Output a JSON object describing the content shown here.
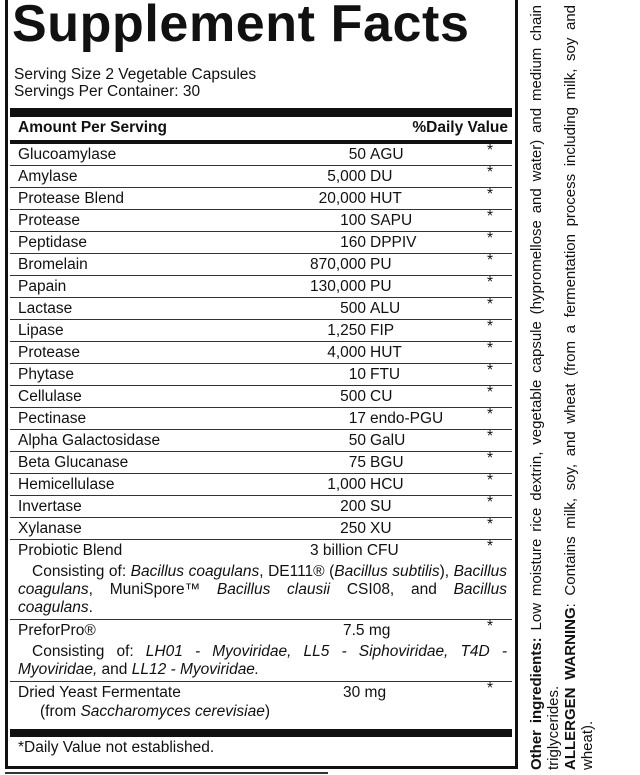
{
  "title": "Supplement Facts",
  "serving_size": "Serving Size 2 Vegetable Capsules",
  "servings_per_container": "Servings Per Container: 30",
  "header": {
    "amount": "Amount Per Serving",
    "dv": "%Daily Value"
  },
  "rows": [
    {
      "name": "Glucoamylase",
      "num": "50",
      "unit": "AGU",
      "dv": "*"
    },
    {
      "name": "Amylase",
      "num": "5,000",
      "unit": "DU",
      "dv": "*"
    },
    {
      "name": "Protease Blend",
      "num": "20,000",
      "unit": "HUT",
      "dv": "*"
    },
    {
      "name": "Protease",
      "num": "100",
      "unit": "SAPU",
      "dv": "*"
    },
    {
      "name": "Peptidase",
      "num": "160",
      "unit": "DPPIV",
      "dv": "*"
    },
    {
      "name": "Bromelain",
      "num": "870,000",
      "unit": "PU",
      "dv": "*"
    },
    {
      "name": "Papain",
      "num": "130,000",
      "unit": "PU",
      "dv": "*"
    },
    {
      "name": "Lactase",
      "num": "500",
      "unit": "ALU",
      "dv": "*"
    },
    {
      "name": "Lipase",
      "num": "1,250",
      "unit": "FIP",
      "dv": "*"
    },
    {
      "name": "Protease",
      "num": "4,000",
      "unit": "HUT",
      "dv": "*"
    },
    {
      "name": "Phytase",
      "num": "10",
      "unit": "FTU",
      "dv": "*"
    },
    {
      "name": "Cellulase",
      "num": "500",
      "unit": "CU",
      "dv": "*"
    },
    {
      "name": "Pectinase",
      "num": "17",
      "unit": "endo-PGU",
      "dv": "*"
    },
    {
      "name": "Alpha Galactosidase",
      "num": "50",
      "unit": "GalU",
      "dv": "*"
    },
    {
      "name": "Beta Glucanase",
      "num": "75",
      "unit": "BGU",
      "dv": "*"
    },
    {
      "name": "Hemicellulase",
      "num": "1,000",
      "unit": "HCU",
      "dv": "*"
    },
    {
      "name": "Invertase",
      "num": "200",
      "unit": "SU",
      "dv": "*"
    },
    {
      "name": "Xylanase",
      "num": "250",
      "unit": "XU",
      "dv": "*"
    }
  ],
  "blends": [
    {
      "name": "Probiotic Blend",
      "amount": "3 billion CFU",
      "dv": "*",
      "detail": [
        {
          "t": "Consisting of: "
        },
        {
          "t": "Bacillus coagulans",
          "i": true
        },
        {
          "t": ", DE111® ("
        },
        {
          "t": "Bacillus subtilis",
          "i": true
        },
        {
          "t": "), "
        },
        {
          "t": "Bacillus coagulans",
          "i": true
        },
        {
          "t": ", MuniSpore™ "
        },
        {
          "t": "Bacillus clausii",
          "i": true
        },
        {
          "t": " CSI08, and "
        },
        {
          "t": "Bacillus coagulans",
          "i": true
        },
        {
          "t": "."
        }
      ]
    },
    {
      "name": "PreforPro®",
      "amount": "7.5 mg",
      "dv": "*",
      "detail": [
        {
          "t": "Consisting of: "
        },
        {
          "t": "LH01 - Myoviridae, LL5 - Siphoviridae, T4D - Myoviridae,",
          "i": true
        },
        {
          "t": " and "
        },
        {
          "t": "LL12 - Myoviridae.",
          "i": true
        }
      ]
    },
    {
      "name": "Dried Yeast Fermentate",
      "amount": "30 mg",
      "dv": "*",
      "detail": [
        {
          "t": "(from "
        },
        {
          "t": "Saccharomyces cerevisiae",
          "i": true
        },
        {
          "t": ")"
        }
      ]
    }
  ],
  "footnote": "*Daily Value not established.",
  "other_ingredients": {
    "label": "Other ingredients:",
    "text": " Low moisture rice dextrin, vegetable capsule (hypromellose and water) and medium chain triglycerides."
  },
  "allergen": {
    "label": "ALLERGEN WARNING",
    "text": ": Contains milk, soy, and wheat (from a fermentation process including milk, soy and wheat)."
  }
}
